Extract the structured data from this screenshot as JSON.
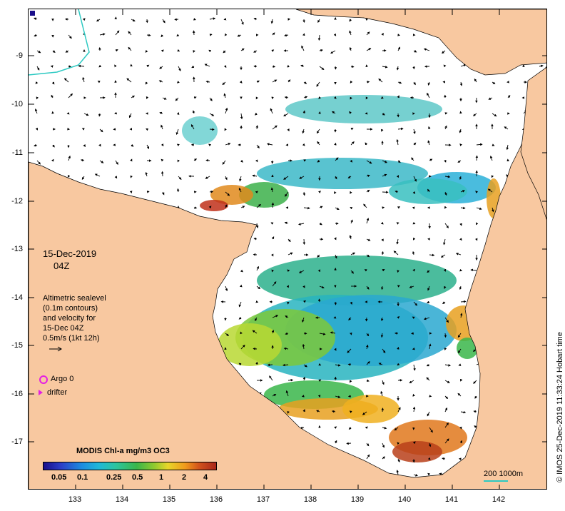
{
  "map": {
    "date_line1": "15-Dec-2019",
    "date_line2": "04Z",
    "sealevel_text": [
      "Altimetric sealevel",
      "(0.1m contours)",
      "and velocity for",
      "15-Dec 04Z",
      "0.5m/s (1kt 12h)"
    ],
    "argo_label": "Argo 0",
    "drifter_label": "drifter",
    "credit": "© IMOS 25-Dec-2019 11:33:24 Hobart time",
    "scale_label": "200  1000m",
    "colors": {
      "land": "#f8c8a0",
      "ocean": "#ffffff",
      "marker": "#e41ee4",
      "isobath": "#2cc9c2"
    }
  },
  "axes": {
    "lat_ticks": [
      "-9",
      "-10",
      "-11",
      "-12",
      "-13",
      "-14",
      "-15",
      "-16",
      "-17"
    ],
    "lon_ticks": [
      "133",
      "134",
      "135",
      "136",
      "137",
      "138",
      "139",
      "140",
      "141",
      "142"
    ]
  },
  "legend": {
    "title": "MODIS Chl-a mg/m3 OC3",
    "labels": [
      "0.05",
      "0.1",
      "0.25",
      "0.5",
      "1",
      "2",
      "4"
    ]
  }
}
